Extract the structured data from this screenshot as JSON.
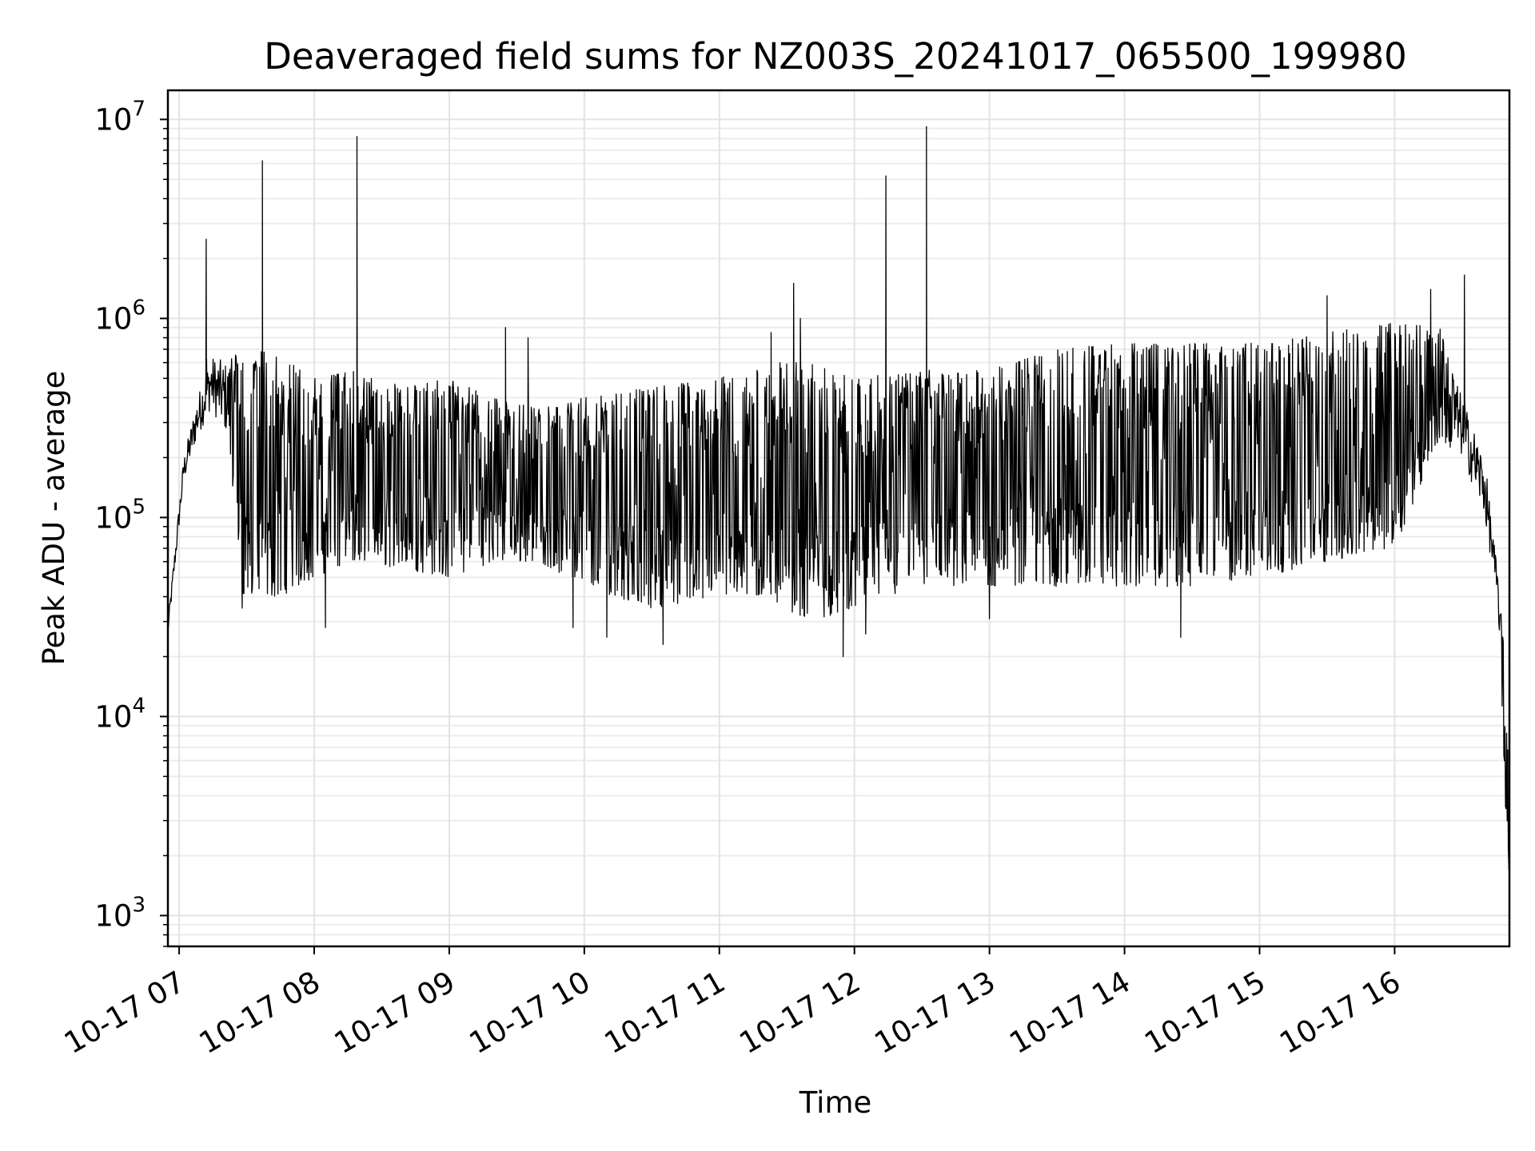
{
  "chart_data": {
    "type": "line",
    "title": "Deaveraged field sums for NZ003S_20241017_065500_199980",
    "xlabel": "Time",
    "ylabel": "Peak ADU - average",
    "yscale": "log",
    "ylim": [
      700,
      14000000
    ],
    "xlim": [
      "2024-10-17 06:55",
      "2024-10-17 16:51"
    ],
    "grid": true,
    "x_ticks": [
      {
        "label": "10-17 07",
        "time": "2024-10-17 07:00"
      },
      {
        "label": "10-17 08",
        "time": "2024-10-17 08:00"
      },
      {
        "label": "10-17 09",
        "time": "2024-10-17 09:00"
      },
      {
        "label": "10-17 10",
        "time": "2024-10-17 10:00"
      },
      {
        "label": "10-17 11",
        "time": "2024-10-17 11:00"
      },
      {
        "label": "10-17 12",
        "time": "2024-10-17 12:00"
      },
      {
        "label": "10-17 13",
        "time": "2024-10-17 13:00"
      },
      {
        "label": "10-17 14",
        "time": "2024-10-17 14:00"
      },
      {
        "label": "10-17 15",
        "time": "2024-10-17 15:00"
      },
      {
        "label": "10-17 16",
        "time": "2024-10-17 16:00"
      }
    ],
    "y_ticks": [
      {
        "base": "10",
        "exp": "3",
        "value": 1000
      },
      {
        "base": "10",
        "exp": "4",
        "value": 10000
      },
      {
        "base": "10",
        "exp": "5",
        "value": 100000
      },
      {
        "base": "10",
        "exp": "6",
        "value": 1000000
      },
      {
        "base": "10",
        "exp": "7",
        "value": 10000000
      }
    ],
    "series": [
      {
        "color": "#000000",
        "envelope": [
          {
            "time": "2024-10-17 06:55",
            "low": 25000,
            "high": 30000
          },
          {
            "time": "2024-10-17 07:02",
            "low": 150000,
            "high": 200000
          },
          {
            "time": "2024-10-17 07:08",
            "low": 250000,
            "high": 400000
          },
          {
            "time": "2024-10-17 07:14",
            "low": 350000,
            "high": 650000
          },
          {
            "time": "2024-10-17 07:22",
            "low": 250000,
            "high": 600000
          },
          {
            "time": "2024-10-17 07:28",
            "low": 40000,
            "high": 750000
          },
          {
            "time": "2024-10-17 07:45",
            "low": 40000,
            "high": 650000
          },
          {
            "time": "2024-10-17 08:00",
            "low": 50000,
            "high": 500000
          },
          {
            "time": "2024-10-17 08:20",
            "low": 60000,
            "high": 550000
          },
          {
            "time": "2024-10-17 08:40",
            "low": 55000,
            "high": 450000
          },
          {
            "time": "2024-10-17 09:00",
            "low": 50000,
            "high": 500000
          },
          {
            "time": "2024-10-17 09:20",
            "low": 60000,
            "high": 400000
          },
          {
            "time": "2024-10-17 09:40",
            "low": 60000,
            "high": 350000
          },
          {
            "time": "2024-10-17 10:00",
            "low": 45000,
            "high": 400000
          },
          {
            "time": "2024-10-17 10:30",
            "low": 35000,
            "high": 450000
          },
          {
            "time": "2024-10-17 11:00",
            "low": 40000,
            "high": 500000
          },
          {
            "time": "2024-10-17 11:20",
            "low": 40000,
            "high": 600000
          },
          {
            "time": "2024-10-17 11:40",
            "low": 30000,
            "high": 600000
          },
          {
            "time": "2024-10-17 12:00",
            "low": 35000,
            "high": 500000
          },
          {
            "time": "2024-10-17 12:30",
            "low": 45000,
            "high": 550000
          },
          {
            "time": "2024-10-17 13:00",
            "low": 45000,
            "high": 550000
          },
          {
            "time": "2024-10-17 13:30",
            "low": 45000,
            "high": 700000
          },
          {
            "time": "2024-10-17 14:00",
            "low": 45000,
            "high": 750000
          },
          {
            "time": "2024-10-17 14:30",
            "low": 45000,
            "high": 750000
          },
          {
            "time": "2024-10-17 15:00",
            "low": 50000,
            "high": 750000
          },
          {
            "time": "2024-10-17 15:30",
            "low": 60000,
            "high": 850000
          },
          {
            "time": "2024-10-17 16:00",
            "low": 70000,
            "high": 950000
          },
          {
            "time": "2024-10-17 16:20",
            "low": 250000,
            "high": 900000
          },
          {
            "time": "2024-10-17 16:30",
            "low": 200000,
            "high": 400000
          },
          {
            "time": "2024-10-17 16:40",
            "low": 100000,
            "high": 200000
          },
          {
            "time": "2024-10-17 16:46",
            "low": 35000,
            "high": 50000
          },
          {
            "time": "2024-10-17 16:51",
            "low": 1000,
            "high": 10000
          }
        ],
        "spikes": [
          {
            "time": "2024-10-17 07:12",
            "value": 2500000
          },
          {
            "time": "2024-10-17 07:37",
            "value": 6200000
          },
          {
            "time": "2024-10-17 08:19",
            "value": 8200000
          },
          {
            "time": "2024-10-17 09:25",
            "value": 900000
          },
          {
            "time": "2024-10-17 09:35",
            "value": 800000
          },
          {
            "time": "2024-10-17 11:23",
            "value": 850000
          },
          {
            "time": "2024-10-17 11:33",
            "value": 1500000
          },
          {
            "time": "2024-10-17 11:36",
            "value": 1000000
          },
          {
            "time": "2024-10-17 12:14",
            "value": 5200000
          },
          {
            "time": "2024-10-17 12:32",
            "value": 9200000
          },
          {
            "time": "2024-10-17 15:30",
            "value": 1300000
          },
          {
            "time": "2024-10-17 16:16",
            "value": 1400000
          },
          {
            "time": "2024-10-17 16:31",
            "value": 1650000
          }
        ],
        "dips": [
          {
            "time": "2024-10-17 07:28",
            "value": 35000
          },
          {
            "time": "2024-10-17 08:05",
            "value": 28000
          },
          {
            "time": "2024-10-17 09:55",
            "value": 28000
          },
          {
            "time": "2024-10-17 10:10",
            "value": 25000
          },
          {
            "time": "2024-10-17 10:35",
            "value": 23000
          },
          {
            "time": "2024-10-17 11:55",
            "value": 20000
          },
          {
            "time": "2024-10-17 12:05",
            "value": 26000
          },
          {
            "time": "2024-10-17 13:00",
            "value": 31000
          },
          {
            "time": "2024-10-17 14:25",
            "value": 25000
          }
        ]
      }
    ]
  }
}
